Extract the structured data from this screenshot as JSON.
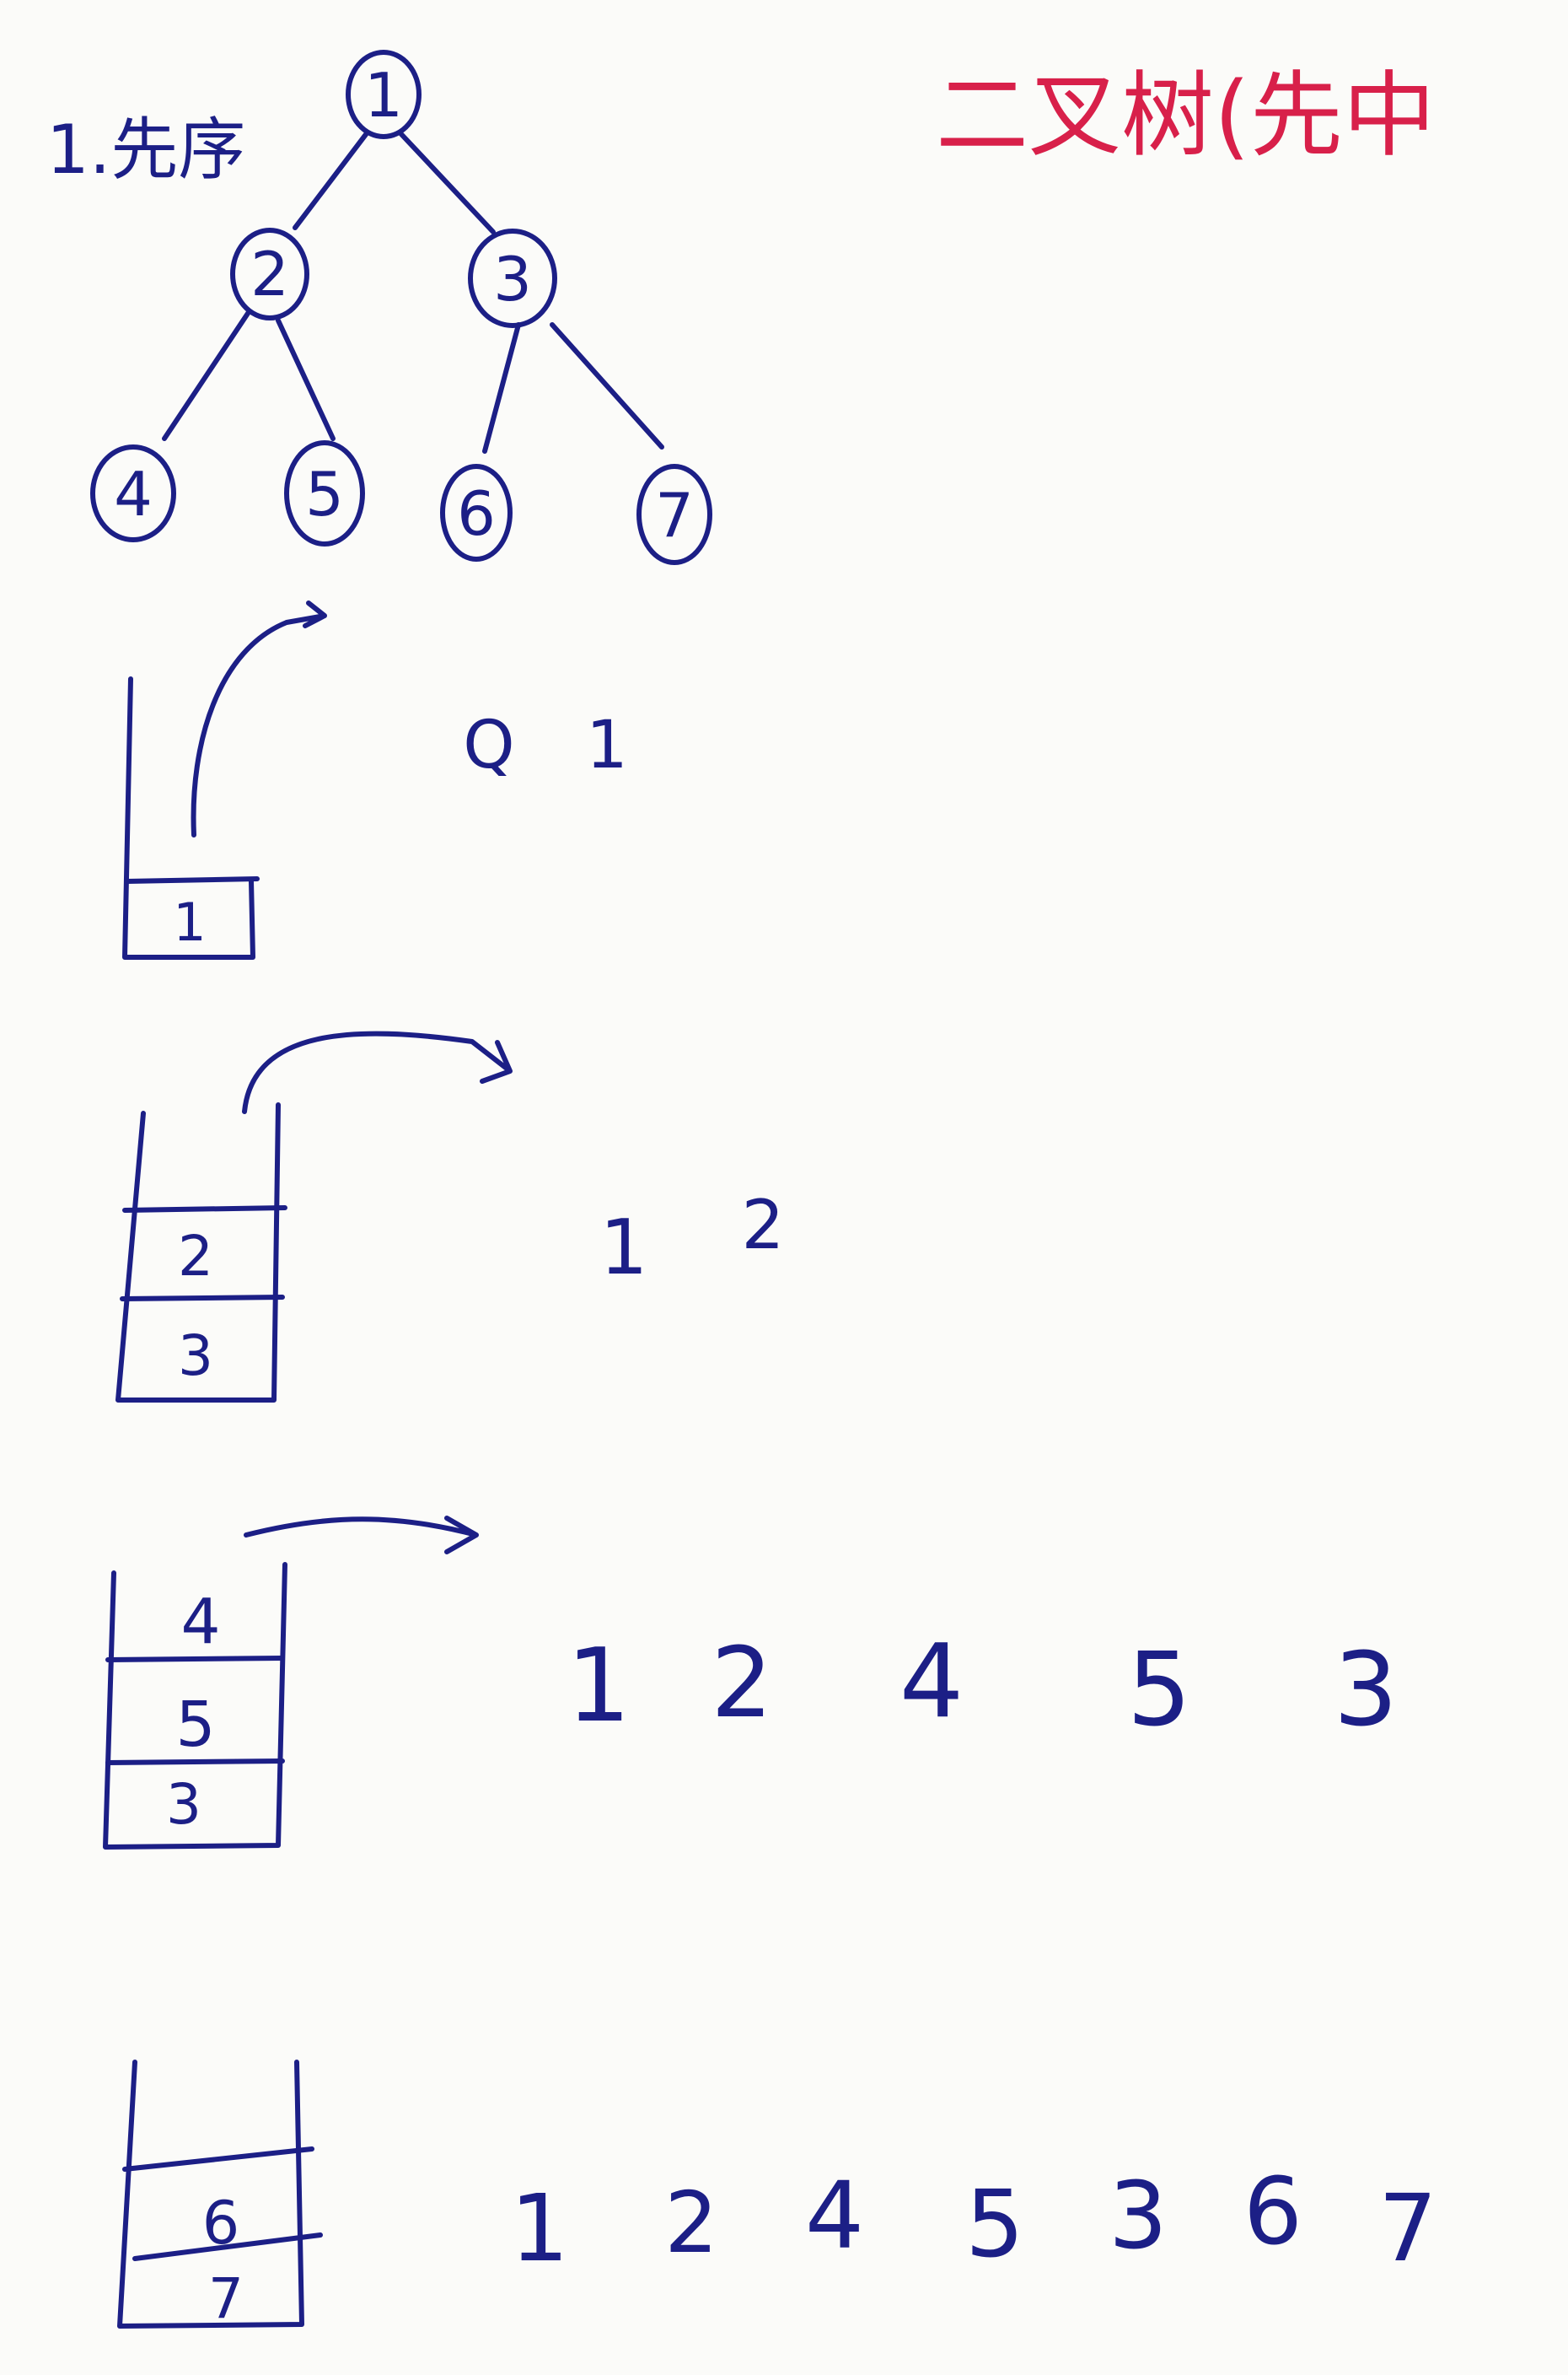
{
  "header": {
    "section_label": "1.先序",
    "title": "二叉树(先中"
  },
  "tree": {
    "nodes": [
      "1",
      "2",
      "3",
      "4",
      "5",
      "6",
      "7"
    ]
  },
  "steps": [
    {
      "stack": [
        "1"
      ],
      "output": [
        "Q",
        "1"
      ]
    },
    {
      "stack": [
        "2",
        "3"
      ],
      "output": [
        "1",
        "2"
      ]
    },
    {
      "stack": [
        "4",
        "5",
        "3"
      ],
      "output": [
        "1",
        "2",
        "4",
        "5",
        "3"
      ]
    },
    {
      "stack": [
        "6",
        "7"
      ],
      "output": [
        "1",
        "2",
        "4",
        "5",
        "3",
        "6",
        "7"
      ]
    }
  ],
  "colors": {
    "ink": "#1c1f86",
    "title": "#d8204a",
    "paper": "#fbfbf9"
  }
}
